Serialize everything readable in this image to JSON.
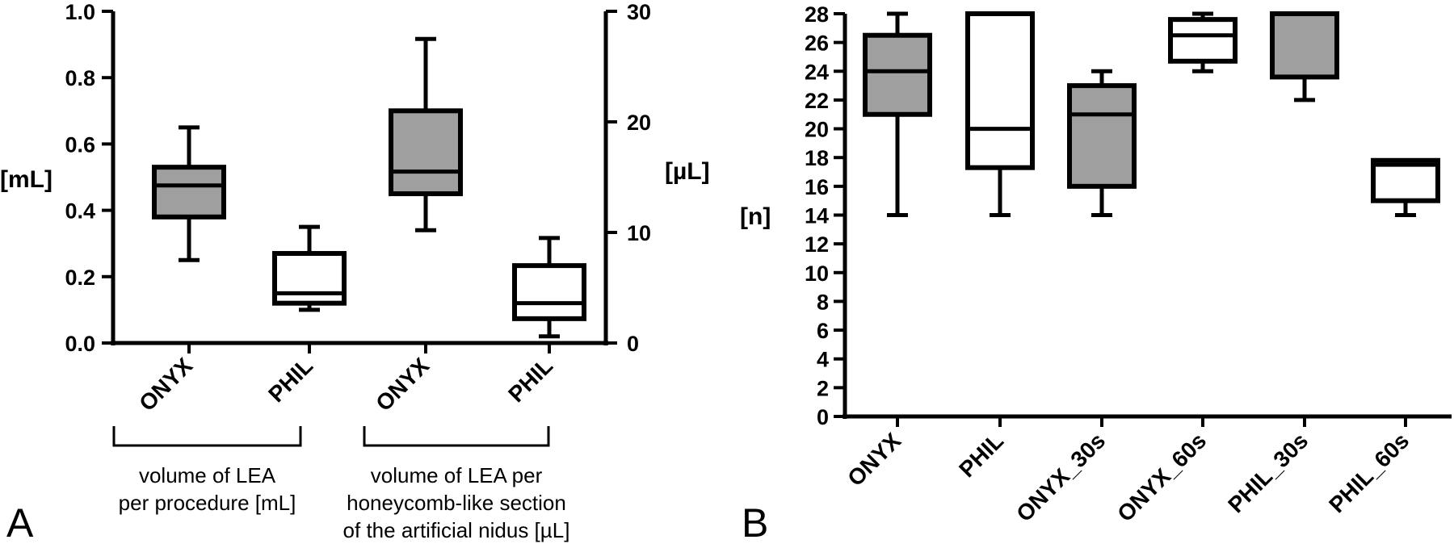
{
  "chart_data": [
    {
      "type": "box",
      "panel_label": "A",
      "left_axis": {
        "unit": "[mL]",
        "ylim": [
          0,
          1.0
        ],
        "ticks": [
          "0.0",
          "0.2",
          "0.4",
          "0.6",
          "0.8",
          "1.0"
        ]
      },
      "right_axis": {
        "unit": "[µL]",
        "ylim": [
          0,
          30
        ],
        "ticks": [
          "0",
          "10",
          "20",
          "30"
        ]
      },
      "groups": [
        {
          "caption": [
            "volume of LEA",
            "per procedure [mL]"
          ]
        },
        {
          "caption": [
            "volume of LEA per",
            "honeycomb-like section",
            "of the artificial nidus [µL]"
          ]
        }
      ],
      "series": [
        {
          "category": "ONYX",
          "axis": "left",
          "fill": "gray",
          "min": 0.25,
          "q1": 0.38,
          "median": 0.475,
          "q3": 0.53,
          "max": 0.65
        },
        {
          "category": "PHIL",
          "axis": "left",
          "fill": "white",
          "min": 0.1,
          "q1": 0.12,
          "median": 0.15,
          "q3": 0.27,
          "max": 0.35
        },
        {
          "category": "ONYX",
          "axis": "right",
          "fill": "gray",
          "min": 10.2,
          "q1": 13.5,
          "median": 15.5,
          "q3": 21,
          "max": 27.5
        },
        {
          "category": "PHIL",
          "axis": "right",
          "fill": "white",
          "min": 0.6,
          "q1": 2.2,
          "median": 3.6,
          "q3": 7,
          "max": 9.5
        }
      ]
    },
    {
      "type": "box",
      "panel_label": "B",
      "y_axis": {
        "unit": "[n]",
        "ylim": [
          0,
          28
        ],
        "ticks": [
          "0",
          "2",
          "4",
          "6",
          "8",
          "10",
          "12",
          "14",
          "16",
          "18",
          "20",
          "22",
          "24",
          "26",
          "28"
        ]
      },
      "series": [
        {
          "category": "ONYX",
          "fill": "gray",
          "min": 14,
          "q1": 21,
          "median": 24,
          "q3": 26.5,
          "max": 28
        },
        {
          "category": "PHIL",
          "fill": "white",
          "min": 14,
          "q1": 17.3,
          "median": 20,
          "q3": 28,
          "max": 28
        },
        {
          "category": "ONYX_30s",
          "fill": "gray",
          "min": 14,
          "q1": 16,
          "median": 21,
          "q3": 23,
          "max": 24
        },
        {
          "category": "ONYX_60s",
          "fill": "white",
          "min": 24,
          "q1": 24.7,
          "median": 26.5,
          "q3": 27.6,
          "max": 28
        },
        {
          "category": "PHIL_30s",
          "fill": "gray",
          "min": 22,
          "q1": 23.6,
          "median": 28,
          "q3": 28,
          "max": 28
        },
        {
          "category": "PHIL_60s",
          "fill": "white",
          "min": 14,
          "q1": 15,
          "median": 17.5,
          "q3": 17.8,
          "max": 17.8
        }
      ]
    }
  ]
}
